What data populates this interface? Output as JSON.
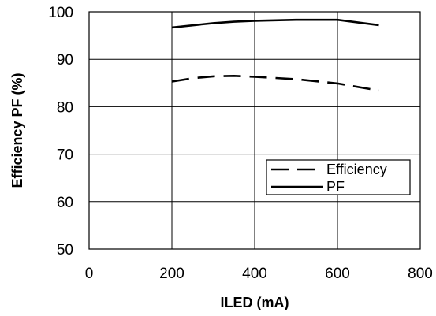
{
  "chart_data": {
    "type": "line",
    "xlabel": "ILED (mA)",
    "ylabel": "Efficiency PF (%)",
    "xlim": [
      0,
      800
    ],
    "ylim": [
      50,
      100
    ],
    "x_ticks": [
      0,
      200,
      400,
      600,
      800
    ],
    "y_ticks": [
      50,
      60,
      70,
      80,
      90,
      100
    ],
    "grid": true,
    "legend_position": "lower-right",
    "series": [
      {
        "name": "Efficiency",
        "style": "dashed",
        "color": "#000000",
        "points": [
          [
            200,
            85.3
          ],
          [
            250,
            86.0
          ],
          [
            300,
            86.4
          ],
          [
            350,
            86.5
          ],
          [
            400,
            86.3
          ],
          [
            500,
            85.8
          ],
          [
            600,
            84.9
          ],
          [
            700,
            83.4
          ]
        ]
      },
      {
        "name": "PF",
        "style": "solid",
        "color": "#000000",
        "points": [
          [
            200,
            96.7
          ],
          [
            300,
            97.6
          ],
          [
            350,
            97.9
          ],
          [
            400,
            98.1
          ],
          [
            500,
            98.3
          ],
          [
            600,
            98.3
          ],
          [
            700,
            97.2
          ]
        ]
      }
    ]
  }
}
